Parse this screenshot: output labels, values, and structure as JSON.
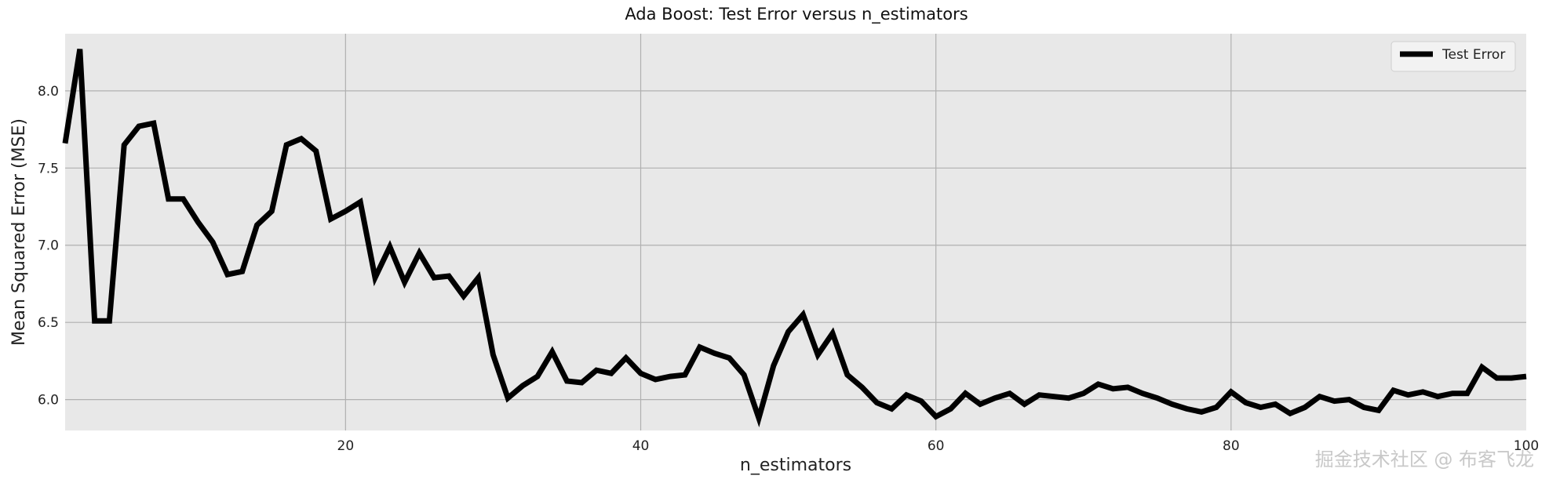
{
  "chart_data": {
    "type": "line",
    "title": "Ada Boost: Test Error versus n_estimators",
    "xlabel": "n_estimators",
    "ylabel": "Mean Squared Error (MSE)",
    "xlim": [
      1,
      100
    ],
    "ylim": [
      5.8,
      8.37
    ],
    "xticks": [
      20,
      40,
      60,
      80,
      100
    ],
    "yticks": [
      6.0,
      6.5,
      7.0,
      7.5,
      8.0
    ],
    "grid": true,
    "legend_position": "top-right",
    "background_color": "#e8e8e8",
    "grid_color": "#b0b0b0",
    "series": [
      {
        "name": "Test Error",
        "color": "#000000",
        "x": [
          1,
          2,
          3,
          4,
          5,
          6,
          7,
          8,
          9,
          10,
          11,
          12,
          13,
          14,
          15,
          16,
          17,
          18,
          19,
          20,
          21,
          22,
          23,
          24,
          25,
          26,
          27,
          28,
          29,
          30,
          31,
          32,
          33,
          34,
          35,
          36,
          37,
          38,
          39,
          40,
          41,
          42,
          43,
          44,
          45,
          46,
          47,
          48,
          49,
          50,
          51,
          52,
          53,
          54,
          55,
          56,
          57,
          58,
          59,
          60,
          61,
          62,
          63,
          64,
          65,
          66,
          67,
          68,
          69,
          70,
          71,
          72,
          73,
          74,
          75,
          76,
          77,
          78,
          79,
          80,
          81,
          82,
          83,
          84,
          85,
          86,
          87,
          88,
          89,
          90,
          91,
          92,
          93,
          94,
          95,
          96,
          97,
          98,
          99,
          100
        ],
        "y": [
          7.66,
          8.27,
          6.51,
          6.51,
          7.65,
          7.77,
          7.79,
          7.3,
          7.3,
          7.15,
          7.02,
          6.81,
          6.83,
          7.13,
          7.22,
          7.65,
          7.69,
          7.61,
          7.17,
          7.22,
          7.28,
          6.79,
          6.99,
          6.76,
          6.95,
          6.79,
          6.8,
          6.67,
          6.79,
          6.29,
          6.01,
          6.09,
          6.15,
          6.31,
          6.12,
          6.11,
          6.19,
          6.17,
          6.27,
          6.17,
          6.13,
          6.15,
          6.16,
          6.34,
          6.3,
          6.27,
          6.16,
          5.88,
          6.22,
          6.44,
          6.55,
          6.29,
          6.43,
          6.16,
          6.08,
          5.98,
          5.94,
          6.03,
          5.99,
          5.89,
          5.94,
          6.04,
          5.97,
          6.01,
          6.04,
          5.97,
          6.03,
          6.02,
          6.01,
          6.04,
          6.1,
          6.07,
          6.08,
          6.04,
          6.01,
          5.97,
          5.94,
          5.92,
          5.95,
          6.05,
          5.98,
          5.95,
          5.97,
          5.91,
          5.95,
          6.02,
          5.99,
          6.0,
          5.95,
          5.93,
          6.06,
          6.03,
          6.05,
          6.02,
          6.04,
          6.04,
          6.21,
          6.14,
          6.14,
          6.15
        ]
      }
    ]
  },
  "watermark": "掘金技术社区 @ 布客飞龙"
}
